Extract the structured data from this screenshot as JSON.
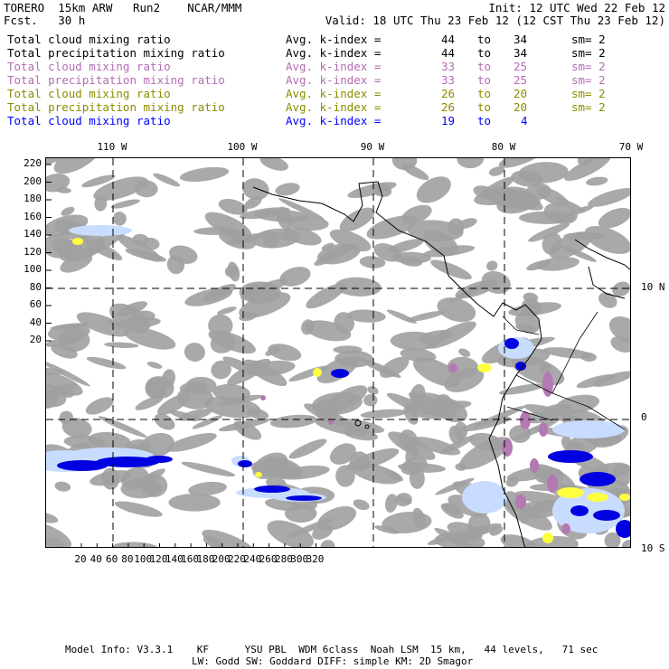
{
  "header": {
    "model": "TORERO  15km ARW   Run2    NCAR/MMM",
    "forecast": "Fcst.   30 h",
    "init": "Init: 12 UTC Wed 22 Feb 12",
    "valid": "Valid: 18 UTC Thu 23 Feb 12 (12 CST Thu 23 Feb 12)"
  },
  "legend": [
    {
      "field": "Total cloud mixing ratio",
      "avg_label": "Avg. k-index =",
      "k_from": "44",
      "to": "to",
      "k_to": "34",
      "sm": "sm= 2",
      "color": "#000000"
    },
    {
      "field": "Total precipitation mixing ratio",
      "avg_label": "Avg. k-index =",
      "k_from": "44",
      "to": "to",
      "k_to": "34",
      "sm": "sm= 2",
      "color": "#000000"
    },
    {
      "field": "Total cloud mixing ratio",
      "avg_label": "Avg. k-index =",
      "k_from": "33",
      "to": "to",
      "k_to": "25",
      "sm": "sm= 2",
      "color": "#b46cb4"
    },
    {
      "field": "Total precipitation mixing ratio",
      "avg_label": "Avg. k-index =",
      "k_from": "33",
      "to": "to",
      "k_to": "25",
      "sm": "sm= 2",
      "color": "#b46cb4"
    },
    {
      "field": "Total cloud mixing ratio",
      "avg_label": "Avg. k-index =",
      "k_from": "26",
      "to": "to",
      "k_to": "20",
      "sm": "sm= 2",
      "color": "#8c8c00"
    },
    {
      "field": "Total precipitation mixing ratio",
      "avg_label": "Avg. k-index =",
      "k_from": "26",
      "to": "to",
      "k_to": "20",
      "sm": "sm= 2",
      "color": "#8c8c00"
    },
    {
      "field": "Total cloud mixing ratio",
      "avg_label": "Avg. k-index =",
      "k_from": "19",
      "to": "to",
      "k_to": "4",
      "sm": "",
      "color": "#0000ff"
    }
  ],
  "map": {
    "lon_labels": [
      "110 W",
      "100 W",
      "90 W",
      "80 W",
      "70 W"
    ],
    "lat_labels": [
      "10 N",
      "0",
      "10 S"
    ],
    "y_ticks": [
      "220",
      "200",
      "180",
      "160",
      "140",
      "120",
      "100",
      "80",
      "60",
      "40",
      "20"
    ],
    "x_ticks": [
      "20",
      "40",
      "60",
      "80",
      "100",
      "120",
      "140",
      "160",
      "180",
      "200",
      "220",
      "240",
      "260",
      "280",
      "300",
      "320"
    ],
    "colors": {
      "cloud_gray": "#a0a0a0",
      "light_blue": "#c8dcff",
      "blue": "#0000e0",
      "yellow": "#ffff40",
      "purple": "#b478b4"
    }
  },
  "footer": {
    "line1": "Model Info: V3.3.1    KF      YSU PBL  WDM 6class  Noah LSM  15 km,   44 levels,   71 sec",
    "line2": "LW: Godd SW: Goddard DIFF: simple KM: 2D Smagor"
  }
}
